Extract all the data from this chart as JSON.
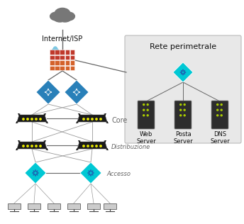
{
  "background_color": "#ffffff",
  "perimeter_box_color": "#e8e8e8",
  "perimeter_label": "Rete perimetrale",
  "labels": {
    "internet": "Internet/ISP",
    "core": "Core",
    "distribuzione": "Distribuzione",
    "accesso": "Accesso",
    "web": "Web\nServer",
    "posta": "Posta\nServer",
    "dns": "DNS\nServer"
  },
  "colors": {
    "cloud_dark": "#777777",
    "cloud_blue": "#7ec8e3",
    "firewall_red": "#c0392b",
    "firewall_orange": "#d4622a",
    "router_blue": "#2980b9",
    "switch_black": "#1a1a1a",
    "hub_cyan": "#00c8d4",
    "hub_blue": "#1a6bb5",
    "server_dark": "#2d2d2d",
    "line_gray": "#666666",
    "line_light": "#999999",
    "text_dark": "#111111",
    "text_gray": "#666666",
    "arrow_black": "#111111"
  },
  "figsize": [
    3.44,
    3.16
  ],
  "dpi": 100
}
